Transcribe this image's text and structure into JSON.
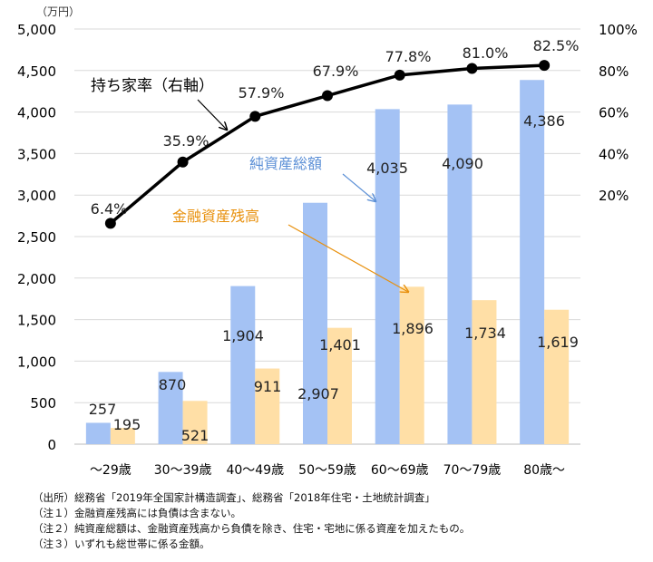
{
  "chart_data": {
    "type": "bar",
    "title": "",
    "ylabel_left": "（万円）",
    "categories": [
      "～29歳",
      "30～39歳",
      "40～49歳",
      "50～59歳",
      "60～69歳",
      "70～79歳",
      "80歳～"
    ],
    "series": [
      {
        "name": "純資産総額",
        "type": "bar",
        "axis": "left",
        "color": "#a4c2f4",
        "values": [
          257,
          870,
          1904,
          2907,
          4035,
          4090,
          4386
        ],
        "labels": [
          "257",
          "870",
          "1,904",
          "2,907",
          "4,035",
          "4,090",
          "4,386"
        ]
      },
      {
        "name": "金融資産残高",
        "type": "bar",
        "axis": "left",
        "color": "#ffdfa6",
        "values": [
          195,
          521,
          911,
          1401,
          1896,
          1734,
          1619
        ],
        "labels": [
          "195",
          "521",
          "911",
          "1,401",
          "1,896",
          "1,734",
          "1,619"
        ]
      },
      {
        "name": "持ち家率（右軸）",
        "type": "line",
        "axis": "right",
        "color": "#000000",
        "values": [
          6.4,
          35.9,
          57.9,
          67.9,
          77.8,
          81.0,
          82.5
        ],
        "labels": [
          "6.4%",
          "35.9%",
          "57.9%",
          "67.9%",
          "77.8%",
          "81.0%",
          "82.5%"
        ]
      }
    ],
    "ylim_left": [
      0,
      5000
    ],
    "yticks_left": [
      "0",
      "500",
      "1,000",
      "1,500",
      "2,000",
      "2,500",
      "3,000",
      "3,500",
      "4,000",
      "4,500",
      "5,000"
    ],
    "ylim_right": [
      -100,
      100
    ],
    "yticks_right": [
      "20%",
      "40%",
      "60%",
      "80%",
      "100%"
    ],
    "grid": true,
    "legend": "annotations",
    "annotations": {
      "line": "持ち家率（右軸）",
      "net": "純資産総額",
      "fin": "金融資産残高"
    },
    "annotation_colors": {
      "net": "#5b8fd6",
      "fin": "#e8900c"
    }
  },
  "notes": [
    "（出所）総務省「2019年全国家計構造調査」、総務省「2018年住宅・土地統計調査」",
    "（注１）金融資産残高には負債は含まない。",
    "（注２）純資産総額は、金融資産残高から負債を除き、住宅・宅地に係る資産を加えたもの。",
    "（注３）いずれも総世帯に係る金額。"
  ]
}
